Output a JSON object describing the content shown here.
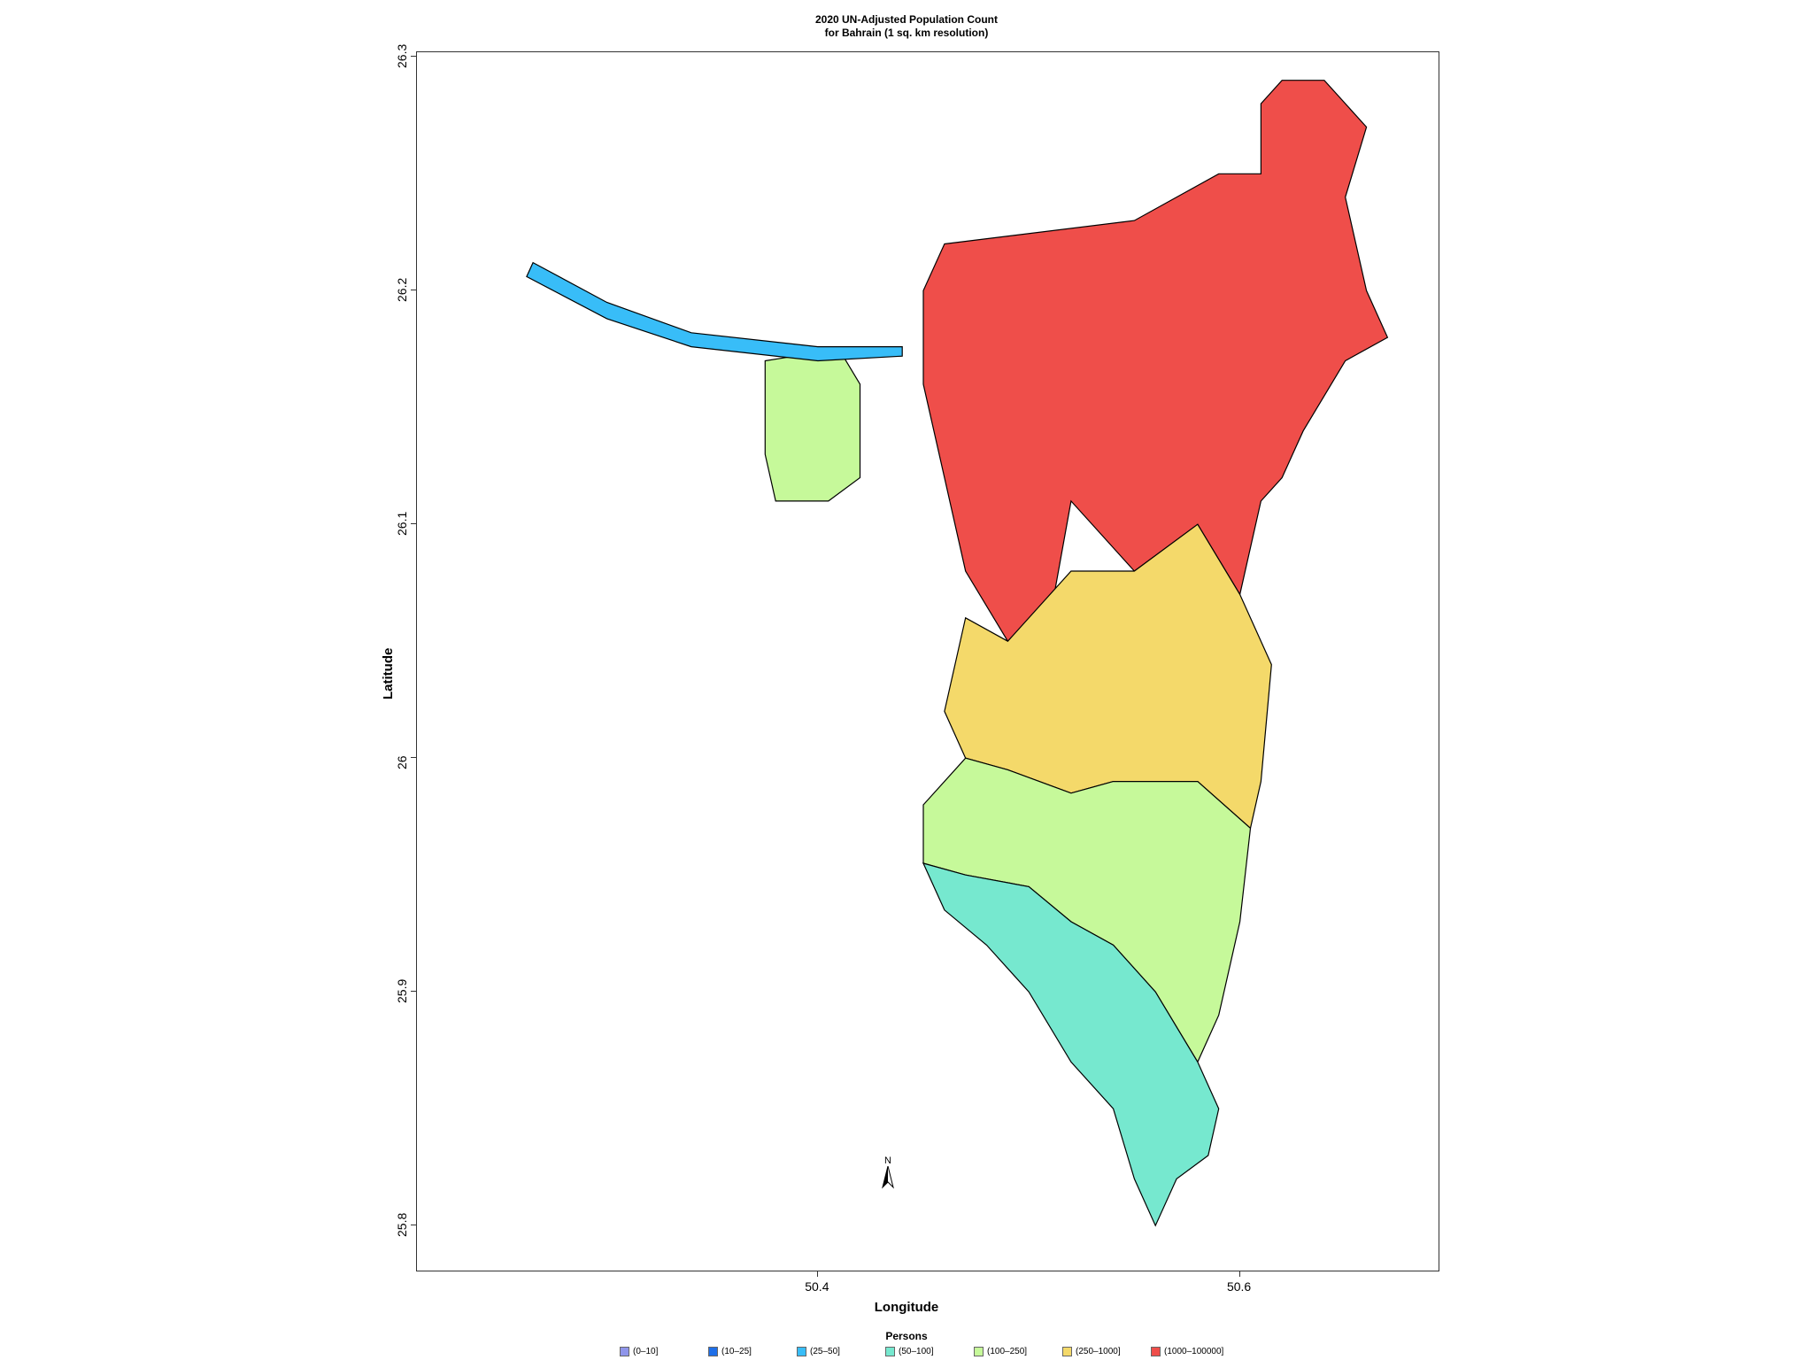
{
  "title": {
    "line1": "2020 UN-Adjusted Population Count",
    "line2": "for Bahrain (1 sq. km resolution)"
  },
  "axes": {
    "x_label": "Longitude",
    "y_label": "Latitude",
    "x_ticks": [
      "50.4",
      "50.6"
    ],
    "y_ticks": [
      "26.3",
      "26.2",
      "26.1",
      "26",
      "25.9",
      "25.8"
    ]
  },
  "north_arrow_label": "N",
  "legend": {
    "title": "Persons",
    "items": [
      {
        "label": "(0–10]",
        "color": "#8f95ea"
      },
      {
        "label": "(10–25]",
        "color": "#1f6fe8"
      },
      {
        "label": "(25–50]",
        "color": "#38bdf8"
      },
      {
        "label": "(50–100]",
        "color": "#76e8cf"
      },
      {
        "label": "(100–250]",
        "color": "#c6f99a"
      },
      {
        "label": "(250–1000]",
        "color": "#f4d96a"
      },
      {
        "label": "(1000–100000]",
        "color": "#ef4e4a"
      }
    ]
  },
  "chart_data": {
    "type": "heatmap",
    "title": "2020 UN-Adjusted Population Count for Bahrain (1 sq. km resolution)",
    "xlabel": "Longitude",
    "ylabel": "Latitude",
    "xlim": [
      50.21,
      50.695
    ],
    "ylim": [
      25.78,
      26.302
    ],
    "grid": false,
    "legend_position": "bottom",
    "classes": [
      "(0–10]",
      "(10–25]",
      "(25–50]",
      "(50–100]",
      "(100–250]",
      "(250–1000]",
      "(1000–100000]"
    ],
    "regions": [
      {
        "name_hint": "northern urban core",
        "class": "(1000–100000]",
        "polygon": [
          [
            50.46,
            26.22
          ],
          [
            50.55,
            26.23
          ],
          [
            50.59,
            26.25
          ],
          [
            50.61,
            26.25
          ],
          [
            50.61,
            26.28
          ],
          [
            50.62,
            26.29
          ],
          [
            50.64,
            26.29
          ],
          [
            50.66,
            26.27
          ],
          [
            50.65,
            26.24
          ],
          [
            50.66,
            26.2
          ],
          [
            50.67,
            26.18
          ],
          [
            50.65,
            26.17
          ],
          [
            50.63,
            26.14
          ],
          [
            50.62,
            26.12
          ],
          [
            50.61,
            26.11
          ],
          [
            50.6,
            26.07
          ],
          [
            50.58,
            26.1
          ],
          [
            50.55,
            26.08
          ],
          [
            50.52,
            26.11
          ],
          [
            50.51,
            26.06
          ],
          [
            50.49,
            26.05
          ],
          [
            50.47,
            26.08
          ],
          [
            50.46,
            26.12
          ],
          [
            50.45,
            26.16
          ],
          [
            50.45,
            26.2
          ]
        ]
      },
      {
        "name_hint": "central band",
        "class": "(250–1000]",
        "polygon": [
          [
            50.47,
            26.06
          ],
          [
            50.49,
            26.05
          ],
          [
            50.52,
            26.08
          ],
          [
            50.55,
            26.08
          ],
          [
            50.58,
            26.1
          ],
          [
            50.6,
            26.07
          ],
          [
            50.615,
            26.04
          ],
          [
            50.61,
            25.99
          ],
          [
            50.605,
            25.97
          ],
          [
            50.58,
            25.99
          ],
          [
            50.54,
            25.99
          ],
          [
            50.52,
            25.985
          ],
          [
            50.49,
            25.995
          ],
          [
            50.47,
            26.0
          ],
          [
            50.46,
            26.02
          ],
          [
            50.465,
            26.04
          ]
        ]
      },
      {
        "name_hint": "southern plain",
        "class": "(100–250]",
        "polygon": [
          [
            50.45,
            25.98
          ],
          [
            50.47,
            26.0
          ],
          [
            50.49,
            25.995
          ],
          [
            50.52,
            25.985
          ],
          [
            50.54,
            25.99
          ],
          [
            50.58,
            25.99
          ],
          [
            50.605,
            25.97
          ],
          [
            50.6,
            25.93
          ],
          [
            50.59,
            25.89
          ],
          [
            50.58,
            25.87
          ],
          [
            50.56,
            25.9
          ],
          [
            50.54,
            25.92
          ],
          [
            50.52,
            25.93
          ],
          [
            50.5,
            25.945
          ],
          [
            50.47,
            25.95
          ],
          [
            50.45,
            25.955
          ]
        ]
      },
      {
        "name_hint": "southern tip",
        "class": "(50–100]",
        "polygon": [
          [
            50.45,
            25.955
          ],
          [
            50.47,
            25.95
          ],
          [
            50.5,
            25.945
          ],
          [
            50.52,
            25.93
          ],
          [
            50.54,
            25.92
          ],
          [
            50.56,
            25.9
          ],
          [
            50.58,
            25.87
          ],
          [
            50.59,
            25.85
          ],
          [
            50.585,
            25.83
          ],
          [
            50.57,
            25.82
          ],
          [
            50.56,
            25.8
          ],
          [
            50.55,
            25.82
          ],
          [
            50.54,
            25.85
          ],
          [
            50.52,
            25.87
          ],
          [
            50.5,
            25.9
          ],
          [
            50.48,
            25.92
          ],
          [
            50.46,
            25.935
          ]
        ]
      },
      {
        "name_hint": "Umm an Nasan island",
        "class": "(100–250]",
        "polygon": [
          [
            50.375,
            26.17
          ],
          [
            50.41,
            26.175
          ],
          [
            50.42,
            26.16
          ],
          [
            50.42,
            26.12
          ],
          [
            50.405,
            26.11
          ],
          [
            50.38,
            26.11
          ],
          [
            50.375,
            26.13
          ]
        ]
      },
      {
        "name_hint": "causeway",
        "class": "(25–50]",
        "polygon": [
          [
            50.265,
            26.212
          ],
          [
            50.3,
            26.195
          ],
          [
            50.34,
            26.182
          ],
          [
            50.4,
            26.176
          ],
          [
            50.44,
            26.176
          ],
          [
            50.44,
            26.172
          ],
          [
            50.4,
            26.17
          ],
          [
            50.34,
            26.176
          ],
          [
            50.3,
            26.188
          ],
          [
            50.262,
            26.206
          ]
        ]
      }
    ]
  }
}
